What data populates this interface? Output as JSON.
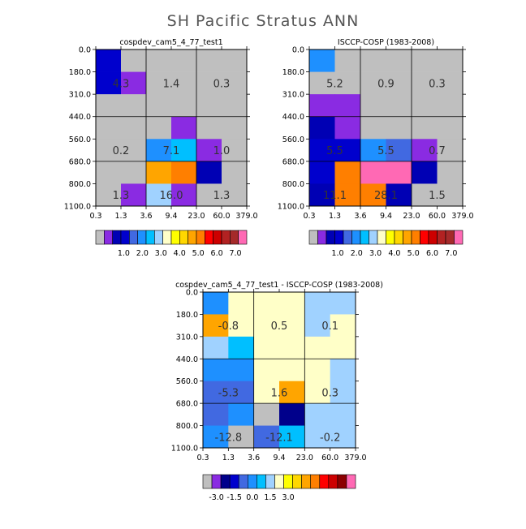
{
  "page_title": "SH Pacific Stratus ANN",
  "ctp_ticks": [
    "0.0",
    "180.0",
    "310.0",
    "440.0",
    "560.0",
    "680.0",
    "800.0",
    "1100.0"
  ],
  "tau_ticks": [
    "0.3",
    "1.3",
    "3.6",
    "9.4",
    "23.0",
    "60.0",
    "379.0"
  ],
  "colors": {
    "missing": "#bfbfbf",
    "abs_palette": [
      "#bfbfbf",
      "#8a2be2",
      "#0000b4",
      "#0000cd",
      "#4169e1",
      "#1e90ff",
      "#00bfff",
      "#a0d2ff",
      "#ffffc8",
      "#ffff00",
      "#ffd700",
      "#ffa500",
      "#ff7f00",
      "#ff0000",
      "#cd0000",
      "#b22222",
      "#a52a2a",
      "#ff69b4"
    ],
    "diff_palette": [
      "#bfbfbf",
      "#8a2be2",
      "#00008b",
      "#0000cd",
      "#4169e1",
      "#1e90ff",
      "#00bfff",
      "#a0d2ff",
      "#ffffc8",
      "#ffff00",
      "#ffd700",
      "#ffa500",
      "#ff7f00",
      "#ff0000",
      "#cd0000",
      "#8b0000",
      "#ff69b4"
    ]
  },
  "chart_data": [
    {
      "type": "heatmap",
      "title": "cospdev_cam5_4_77_test1",
      "ctp_bins": [
        "0.0",
        "180.0",
        "310.0",
        "440.0",
        "560.0",
        "680.0",
        "800.0",
        "1100.0"
      ],
      "tau_bins": [
        "0.3",
        "1.3",
        "3.6",
        "9.4",
        "23.0",
        "60.0",
        "379.0"
      ],
      "cells": [
        [
          "#0000cd",
          "#bfbfbf",
          "#bfbfbf",
          "#bfbfbf",
          "#bfbfbf",
          "#bfbfbf"
        ],
        [
          "#0000cd",
          "#8a2be2",
          "#bfbfbf",
          "#bfbfbf",
          "#bfbfbf",
          "#bfbfbf"
        ],
        [
          "#bfbfbf",
          "#bfbfbf",
          "#bfbfbf",
          "#bfbfbf",
          "#bfbfbf",
          "#bfbfbf"
        ],
        [
          "#bfbfbf",
          "#bfbfbf",
          "#bfbfbf",
          "#8a2be2",
          "#bfbfbf",
          "#bfbfbf"
        ],
        [
          "#bfbfbf",
          "#bfbfbf",
          "#1e90ff",
          "#00bfff",
          "#8a2be2",
          "#bfbfbf"
        ],
        [
          "#bfbfbf",
          "#bfbfbf",
          "#ffa500",
          "#ff7f00",
          "#0000b4",
          "#bfbfbf"
        ],
        [
          "#bfbfbf",
          "#8a2be2",
          "#a0d2ff",
          "#8a2be2",
          "#bfbfbf",
          "#bfbfbf"
        ]
      ],
      "annotations": [
        "4.3",
        "1.4",
        "0.3",
        "0.2",
        "7.1",
        "1.0",
        "1.3",
        "16.0",
        "1.3"
      ],
      "colorbar_labels": [
        "1.0",
        "2.0",
        "3.0",
        "4.0",
        "5.0",
        "6.0",
        "7.0"
      ]
    },
    {
      "type": "heatmap",
      "title": "ISCCP-COSP (1983-2008)",
      "ctp_bins": [
        "0.0",
        "180.0",
        "310.0",
        "440.0",
        "560.0",
        "680.0",
        "800.0",
        "1100.0"
      ],
      "tau_bins": [
        "0.3",
        "1.3",
        "3.6",
        "9.4",
        "23.0",
        "60.0",
        "379.0"
      ],
      "cells": [
        [
          "#1e90ff",
          "#bfbfbf",
          "#bfbfbf",
          "#bfbfbf",
          "#bfbfbf",
          "#bfbfbf"
        ],
        [
          "#bfbfbf",
          "#bfbfbf",
          "#bfbfbf",
          "#bfbfbf",
          "#bfbfbf",
          "#bfbfbf"
        ],
        [
          "#8a2be2",
          "#8a2be2",
          "#bfbfbf",
          "#bfbfbf",
          "#bfbfbf",
          "#bfbfbf"
        ],
        [
          "#0000b4",
          "#8a2be2",
          "#bfbfbf",
          "#bfbfbf",
          "#bfbfbf",
          "#bfbfbf"
        ],
        [
          "#0000cd",
          "#0000cd",
          "#1e90ff",
          "#4169e1",
          "#8a2be2",
          "#bfbfbf"
        ],
        [
          "#0000cd",
          "#ff7f00",
          "#ff69b4",
          "#ff69b4",
          "#0000b4",
          "#bfbfbf"
        ],
        [
          "#0000b4",
          "#ff7f00",
          "#ff7f00",
          "#0000b4",
          "#bfbfbf",
          "#bfbfbf"
        ]
      ],
      "annotations": [
        "5.2",
        "0.9",
        "0.3",
        "5.5",
        "5.5",
        "0.7",
        "11.1",
        "28.1",
        "1.5"
      ],
      "colorbar_labels": [
        "1.0",
        "2.0",
        "3.0",
        "4.0",
        "5.0",
        "6.0",
        "7.0"
      ]
    },
    {
      "type": "heatmap",
      "title": "cospdev_cam5_4_77_test1 - ISCCP-COSP (1983-2008)",
      "ctp_bins": [
        "0.0",
        "180.0",
        "310.0",
        "440.0",
        "560.0",
        "680.0",
        "800.0",
        "1100.0"
      ],
      "tau_bins": [
        "0.3",
        "1.3",
        "3.6",
        "9.4",
        "23.0",
        "60.0",
        "379.0"
      ],
      "cells": [
        [
          "#1e90ff",
          "#ffffc8",
          "#ffffc8",
          "#ffffc8",
          "#a0d2ff",
          "#a0d2ff"
        ],
        [
          "#ffa500",
          "#ffffc8",
          "#ffffc8",
          "#ffffc8",
          "#a0d2ff",
          "#ffffc8"
        ],
        [
          "#a0d2ff",
          "#00bfff",
          "#ffffc8",
          "#ffffc8",
          "#ffffc8",
          "#ffffc8"
        ],
        [
          "#1e90ff",
          "#1e90ff",
          "#ffffc8",
          "#ffffc8",
          "#ffffc8",
          "#a0d2ff"
        ],
        [
          "#4169e1",
          "#4169e1",
          "#ffffc8",
          "#ffa500",
          "#ffffc8",
          "#a0d2ff"
        ],
        [
          "#4169e1",
          "#1e90ff",
          "#bfbfbf",
          "#00008b",
          "#a0d2ff",
          "#a0d2ff"
        ],
        [
          "#1e90ff",
          "#bfbfbf",
          "#4169e1",
          "#00bfff",
          "#a0d2ff",
          "#a0d2ff"
        ]
      ],
      "annotations": [
        "-0.8",
        "0.5",
        "0.1",
        "-5.3",
        "1.6",
        "0.3",
        "-12.8",
        "-12.1",
        "-0.2"
      ],
      "colorbar_labels": [
        "-3.0",
        "-1.5",
        "0.0",
        "1.5",
        "3.0"
      ]
    }
  ]
}
